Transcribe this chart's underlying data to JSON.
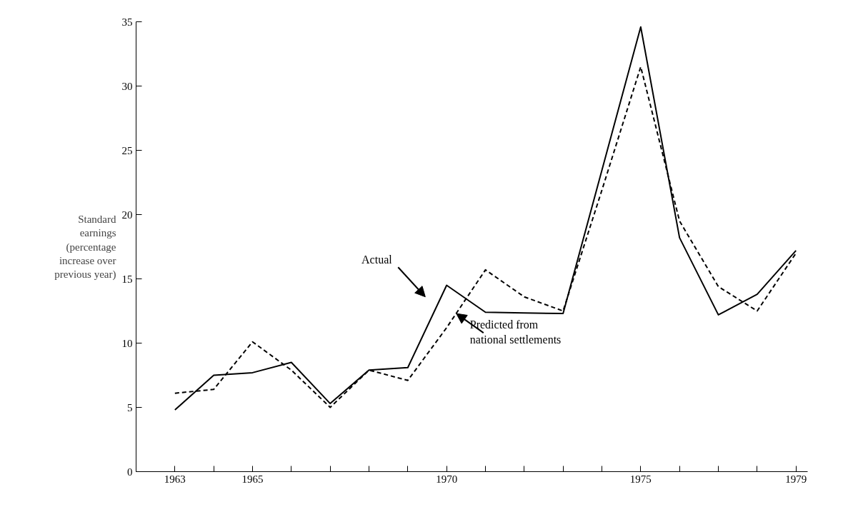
{
  "chart_data": {
    "type": "line",
    "ylabel": "Standard\nearnings\n(percentage\nincrease over\nprevious year)",
    "series": [
      {
        "color": "#000000",
        "line_style": "solid",
        "x": [
          1963,
          1964,
          1965,
          1966,
          1967,
          1968,
          1969,
          1970,
          1971,
          1972,
          1973,
          1975,
          1976,
          1977,
          1978,
          1979
        ],
        "values": [
          4.8,
          7.5,
          7.7,
          8.5,
          5.3,
          7.9,
          8.1,
          14.5,
          12.4,
          12.35,
          12.3,
          34.6,
          18.2,
          12.2,
          13.8,
          17.2
        ]
      },
      {
        "color": "#000000",
        "line_style": "dashed",
        "x": [
          1963,
          1964,
          1965,
          1966,
          1967,
          1968,
          1969,
          1970,
          1971,
          1972,
          1973,
          1974,
          1975,
          1976,
          1977,
          1978,
          1979
        ],
        "values": [
          6.1,
          6.4,
          10.1,
          7.9,
          5.0,
          7.9,
          7.1,
          11.2,
          15.7,
          13.6,
          12.5,
          21.9,
          31.5,
          19.5,
          14.4,
          12.5,
          17.0
        ]
      }
    ],
    "xlim": [
      1962,
      1979.3
    ],
    "xticks": [
      {
        "value": 1963,
        "label": "1963"
      },
      {
        "value": 1964,
        "label": null
      },
      {
        "value": 1965,
        "label": "1965"
      },
      {
        "value": 1966,
        "label": null
      },
      {
        "value": 1967,
        "label": null
      },
      {
        "value": 1968,
        "label": null
      },
      {
        "value": 1969,
        "label": null
      },
      {
        "value": 1970,
        "label": "1970"
      },
      {
        "value": 1971,
        "label": null
      },
      {
        "value": 1972,
        "label": null
      },
      {
        "value": 1973,
        "label": null
      },
      {
        "value": 1974,
        "label": null
      },
      {
        "value": 1975,
        "label": "1975"
      },
      {
        "value": 1976,
        "label": null
      },
      {
        "value": 1977,
        "label": null
      },
      {
        "value": 1978,
        "label": null
      },
      {
        "value": 1979,
        "label": "1979"
      }
    ],
    "ylim": [
      0,
      35
    ],
    "yticks": [
      0,
      5,
      10,
      15,
      20,
      25,
      30,
      35
    ],
    "annotations": [
      "Actual",
      "Predicted from\nnational settlements"
    ],
    "grid": false
  }
}
